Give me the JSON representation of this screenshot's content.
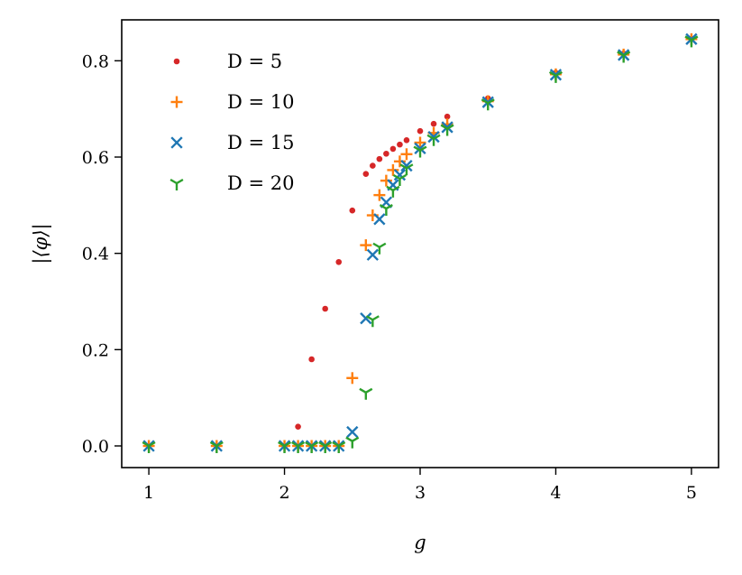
{
  "chart_data": {
    "type": "scatter",
    "xlabel": "g",
    "ylabel": "|⟨φ⟩|",
    "xlim": [
      0.8,
      5.2
    ],
    "ylim": [
      -0.045,
      0.885
    ],
    "xticks": [
      1,
      2,
      3,
      4,
      5
    ],
    "yticks": [
      0.0,
      0.2,
      0.4,
      0.6,
      0.8
    ],
    "xtick_labels": [
      "1",
      "2",
      "3",
      "4",
      "5"
    ],
    "ytick_labels": [
      "0.0",
      "0.2",
      "0.4",
      "0.6",
      "0.8"
    ],
    "grid": false,
    "legend_position": "top-left",
    "series": [
      {
        "name": "D = 5",
        "color": "#d62728",
        "marker": "dot",
        "x": [
          1,
          1.5,
          2.0,
          2.1,
          2.2,
          2.3,
          2.4,
          2.5,
          2.6,
          2.65,
          2.7,
          2.75,
          2.8,
          2.85,
          2.9,
          3.0,
          3.1,
          3.2,
          3.5,
          4.0,
          4.5,
          5.0
        ],
        "y": [
          0.0,
          0.0,
          0.0,
          0.04,
          0.18,
          0.285,
          0.382,
          0.489,
          0.565,
          0.582,
          0.596,
          0.607,
          0.617,
          0.626,
          0.635,
          0.654,
          0.669,
          0.684,
          0.722,
          0.775,
          0.815,
          0.846
        ]
      },
      {
        "name": "D = 10",
        "color": "#ff7f0e",
        "marker": "plus",
        "x": [
          1,
          1.5,
          2.0,
          2.1,
          2.2,
          2.3,
          2.4,
          2.5,
          2.6,
          2.65,
          2.7,
          2.75,
          2.8,
          2.85,
          2.9,
          3.0,
          3.1,
          3.2,
          3.5,
          4.0,
          4.5,
          5.0
        ],
        "y": [
          0.0,
          0.0,
          0.0,
          0.0,
          0.0,
          0.0,
          0.0,
          0.141,
          0.417,
          0.479,
          0.521,
          0.551,
          0.573,
          0.591,
          0.606,
          0.63,
          0.65,
          0.668,
          0.716,
          0.772,
          0.813,
          0.845
        ]
      },
      {
        "name": "D = 15",
        "color": "#1f77b4",
        "marker": "x",
        "x": [
          1,
          1.5,
          2.0,
          2.1,
          2.2,
          2.3,
          2.4,
          2.5,
          2.6,
          2.65,
          2.7,
          2.75,
          2.8,
          2.85,
          2.9,
          3.0,
          3.1,
          3.2,
          3.5,
          4.0,
          4.5,
          5.0
        ],
        "y": [
          0.0,
          0.0,
          0.0,
          0.0,
          0.0,
          0.0,
          0.0,
          0.029,
          0.265,
          0.397,
          0.471,
          0.506,
          0.542,
          0.563,
          0.582,
          0.618,
          0.642,
          0.662,
          0.714,
          0.771,
          0.812,
          0.845
        ]
      },
      {
        "name": "D = 20",
        "color": "#2ca02c",
        "marker": "tri_down",
        "x": [
          1,
          1.5,
          2.0,
          2.1,
          2.2,
          2.3,
          2.4,
          2.5,
          2.6,
          2.65,
          2.7,
          2.75,
          2.8,
          2.85,
          2.9,
          3.0,
          3.1,
          3.2,
          3.5,
          4.0,
          4.5,
          5.0
        ],
        "y": [
          0.0,
          0.0,
          0.0,
          0.0,
          0.0,
          0.0,
          0.0,
          0.01,
          0.111,
          0.262,
          0.413,
          0.493,
          0.531,
          0.555,
          0.577,
          0.614,
          0.638,
          0.659,
          0.712,
          0.769,
          0.811,
          0.843
        ]
      }
    ]
  }
}
